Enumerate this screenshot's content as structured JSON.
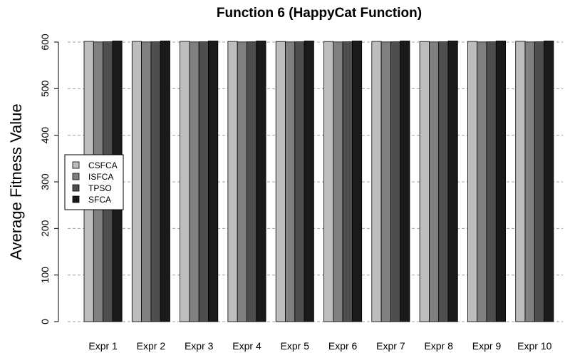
{
  "chart_data": {
    "type": "bar",
    "title": "Function 6 (HappyCat Function)",
    "xlabel": "",
    "ylabel": "Average Fitness Value",
    "ylim": [
      0,
      600
    ],
    "yticks": [
      0,
      100,
      200,
      300,
      400,
      500,
      600
    ],
    "grid": true,
    "legend_position": "left",
    "categories": [
      "Expr 1",
      "Expr 2",
      "Expr 3",
      "Expr 4",
      "Expr 5",
      "Expr 6",
      "Expr 7",
      "Expr 8",
      "Expr 9",
      "Expr 10"
    ],
    "series": [
      {
        "name": "CSFCA",
        "color": "#bdbdbd",
        "values": [
          601.5,
          601.4,
          601.5,
          601.3,
          601.2,
          601.2,
          601.4,
          601.2,
          601.3,
          601.6
        ]
      },
      {
        "name": "ISFCA",
        "color": "#808080",
        "values": [
          600.3,
          600.3,
          600.3,
          600.3,
          600.3,
          600.3,
          600.3,
          600.3,
          600.3,
          600.3
        ]
      },
      {
        "name": "TPSO",
        "color": "#4e4e4e",
        "values": [
          600.6,
          600.6,
          600.6,
          600.6,
          600.6,
          600.6,
          600.6,
          600.6,
          600.6,
          600.6
        ]
      },
      {
        "name": "SFCA",
        "color": "#1a1a1a",
        "values": [
          602.4,
          602.4,
          602.4,
          602.4,
          602.4,
          602.4,
          602.4,
          602.4,
          602.4,
          602.4
        ]
      }
    ]
  }
}
